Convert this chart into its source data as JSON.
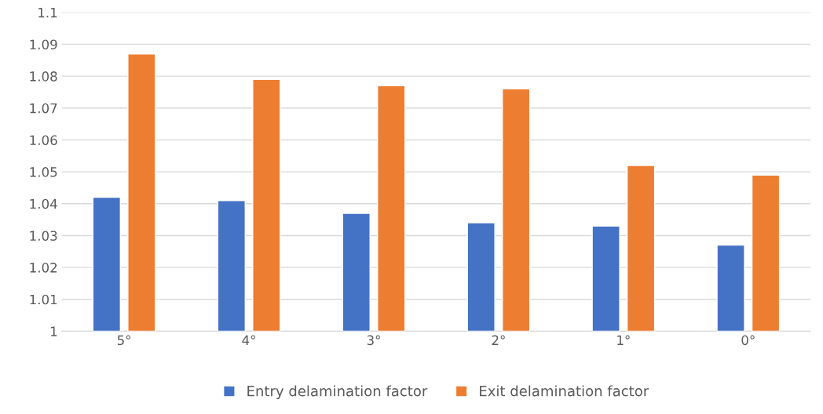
{
  "chart_data": {
    "type": "bar",
    "categories": [
      "5°",
      "4°",
      "3°",
      "2°",
      "1°",
      "0°"
    ],
    "series": [
      {
        "name": "Entry delamination factor",
        "color": "#4472c4",
        "values": [
          1.042,
          1.041,
          1.037,
          1.034,
          1.033,
          1.027
        ]
      },
      {
        "name": "Exit delamination factor",
        "color": "#ed7d31",
        "values": [
          1.087,
          1.079,
          1.077,
          1.076,
          1.052,
          1.049
        ]
      }
    ],
    "ylim": [
      1,
      1.1
    ],
    "yticks": [
      {
        "value": 1,
        "label": "1"
      },
      1.01,
      1.02,
      1.03,
      1.04,
      1.05,
      1.06,
      1.07,
      1.08,
      1.09,
      {
        "value": 1.1,
        "label": "1.1"
      }
    ],
    "grid": "y",
    "legend": "bottom"
  }
}
